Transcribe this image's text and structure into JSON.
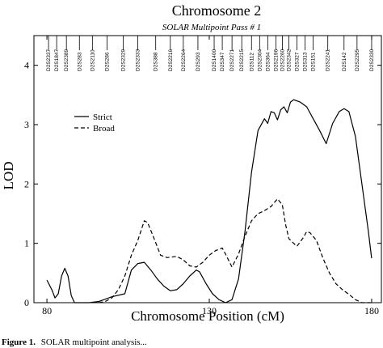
{
  "chart_data": {
    "type": "line",
    "title": "Chromosome 2",
    "subtitle": "SOLAR Multipoint Pass # 1",
    "xlabel": "Chromosome Position (cM)",
    "ylabel": "LOD",
    "xlim": [
      76,
      183
    ],
    "ylim": [
      0,
      4.5
    ],
    "x_ticks": [
      80,
      130,
      180
    ],
    "y_ticks": [
      0,
      1,
      2,
      3,
      4
    ],
    "grid": false,
    "legend_position": "upper-left",
    "markers": [
      {
        "name": "D2S2337",
        "pos": 80.5
      },
      {
        "name": "D2S1847",
        "pos": 83
      },
      {
        "name": "D2S2389",
        "pos": 86
      },
      {
        "name": "D2S283",
        "pos": 90
      },
      {
        "name": "D2S2110",
        "pos": 94
      },
      {
        "name": "D2S286",
        "pos": 98.5
      },
      {
        "name": "D2S2329",
        "pos": 103.5
      },
      {
        "name": "D2S2333",
        "pos": 108
      },
      {
        "name": "D2S388",
        "pos": 113.5
      },
      {
        "name": "D2S2216",
        "pos": 118
      },
      {
        "name": "D2S2264",
        "pos": 122
      },
      {
        "name": "D2S293",
        "pos": 126.5
      },
      {
        "name": "D2S1400",
        "pos": 131.5
      },
      {
        "name": "D2S347",
        "pos": 134
      },
      {
        "name": "D2S2271",
        "pos": 137
      },
      {
        "name": "D2S2215",
        "pos": 140
      },
      {
        "name": "D2S112",
        "pos": 143
      },
      {
        "name": "D2S2304",
        "pos": 145.5
      },
      {
        "name": "D2S364",
        "pos": 148
      },
      {
        "name": "D2S2196",
        "pos": 150.5
      },
      {
        "name": "D2S2260",
        "pos": 152.5
      },
      {
        "name": "D2S2342",
        "pos": 154.5
      },
      {
        "name": "D2S327",
        "pos": 157
      },
      {
        "name": "D2S313",
        "pos": 159.5
      },
      {
        "name": "D2S151",
        "pos": 162
      },
      {
        "name": "D2S2241",
        "pos": 166.5
      },
      {
        "name": "D2S142",
        "pos": 171.5
      },
      {
        "name": "D2S2295",
        "pos": 175.5
      },
      {
        "name": "D2S2330",
        "pos": 180
      }
    ],
    "series": [
      {
        "name": "Strict",
        "style": "solid",
        "points": [
          [
            80,
            0.38
          ],
          [
            81.5,
            0.22
          ],
          [
            82.5,
            0.08
          ],
          [
            83.5,
            0.15
          ],
          [
            84.5,
            0.45
          ],
          [
            85.5,
            0.58
          ],
          [
            86.5,
            0.45
          ],
          [
            87.5,
            0.12
          ],
          [
            88.5,
            0.0
          ],
          [
            90,
            0.0
          ],
          [
            93,
            0.0
          ],
          [
            96,
            0.02
          ],
          [
            100,
            0.1
          ],
          [
            104,
            0.15
          ],
          [
            106,
            0.55
          ],
          [
            108,
            0.66
          ],
          [
            110,
            0.68
          ],
          [
            112,
            0.55
          ],
          [
            114,
            0.4
          ],
          [
            116,
            0.28
          ],
          [
            118,
            0.2
          ],
          [
            120,
            0.22
          ],
          [
            122,
            0.32
          ],
          [
            124,
            0.45
          ],
          [
            126,
            0.55
          ],
          [
            127,
            0.52
          ],
          [
            129,
            0.32
          ],
          [
            131,
            0.15
          ],
          [
            133,
            0.05
          ],
          [
            135,
            0.0
          ],
          [
            137,
            0.05
          ],
          [
            139,
            0.4
          ],
          [
            141,
            1.2
          ],
          [
            143,
            2.2
          ],
          [
            145,
            2.9
          ],
          [
            147,
            3.1
          ],
          [
            148,
            3.02
          ],
          [
            149,
            3.22
          ],
          [
            150,
            3.2
          ],
          [
            151,
            3.08
          ],
          [
            152,
            3.25
          ],
          [
            153,
            3.3
          ],
          [
            154,
            3.2
          ],
          [
            155,
            3.38
          ],
          [
            156,
            3.42
          ],
          [
            157,
            3.4
          ],
          [
            158,
            3.38
          ],
          [
            160,
            3.3
          ],
          [
            162,
            3.1
          ],
          [
            164,
            2.9
          ],
          [
            166,
            2.68
          ],
          [
            168,
            3.02
          ],
          [
            170,
            3.22
          ],
          [
            171.5,
            3.27
          ],
          [
            173,
            3.22
          ],
          [
            175,
            2.8
          ],
          [
            177,
            2.0
          ],
          [
            179,
            1.2
          ],
          [
            180,
            0.75
          ]
        ]
      },
      {
        "name": "Broad",
        "style": "dashed",
        "points": [
          [
            96,
            0.0
          ],
          [
            98,
            0.02
          ],
          [
            100,
            0.08
          ],
          [
            102,
            0.22
          ],
          [
            104,
            0.45
          ],
          [
            106,
            0.8
          ],
          [
            108,
            1.05
          ],
          [
            110,
            1.38
          ],
          [
            111,
            1.35
          ],
          [
            113,
            1.08
          ],
          [
            115,
            0.8
          ],
          [
            117,
            0.76
          ],
          [
            120,
            0.78
          ],
          [
            122,
            0.72
          ],
          [
            124,
            0.62
          ],
          [
            126,
            0.6
          ],
          [
            128,
            0.68
          ],
          [
            130,
            0.8
          ],
          [
            132,
            0.88
          ],
          [
            134,
            0.92
          ],
          [
            135,
            0.82
          ],
          [
            137,
            0.6
          ],
          [
            139,
            0.82
          ],
          [
            141,
            1.12
          ],
          [
            143,
            1.38
          ],
          [
            145,
            1.5
          ],
          [
            147,
            1.55
          ],
          [
            149,
            1.62
          ],
          [
            151,
            1.75
          ],
          [
            152.5,
            1.65
          ],
          [
            153.5,
            1.32
          ],
          [
            154.5,
            1.08
          ],
          [
            156,
            1.0
          ],
          [
            157,
            0.95
          ],
          [
            159,
            1.1
          ],
          [
            160,
            1.2
          ],
          [
            161,
            1.18
          ],
          [
            163,
            1.05
          ],
          [
            165,
            0.75
          ],
          [
            167,
            0.5
          ],
          [
            169,
            0.32
          ],
          [
            171,
            0.22
          ],
          [
            173,
            0.14
          ],
          [
            175,
            0.05
          ],
          [
            177,
            0.0
          ],
          [
            180,
            0.0
          ]
        ]
      }
    ]
  },
  "caption": {
    "label": "Figure 1.",
    "text": "SOLAR multipoint analysis..."
  }
}
